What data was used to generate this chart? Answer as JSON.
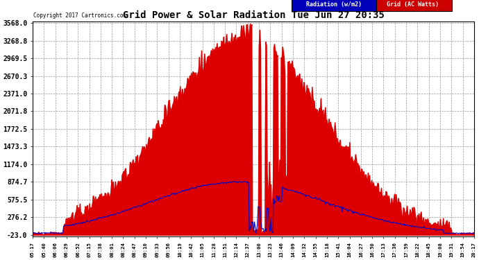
{
  "title": "Grid Power & Solar Radiation Tue Jun 27 20:35",
  "copyright": "Copyright 2017 Cartronics.com",
  "yticks": [
    3568.0,
    3268.8,
    2969.5,
    2670.3,
    2371.0,
    2071.8,
    1772.5,
    1473.3,
    1174.0,
    874.7,
    575.5,
    276.2,
    -23.0
  ],
  "ymin": -23.0,
  "ymax": 3568.0,
  "legend_radiation_label": "Radiation (w/m2)",
  "legend_grid_label": "Grid (AC Watts)",
  "legend_radiation_bg": "#0000bb",
  "legend_radiation_fg": "#ffffff",
  "legend_grid_bg": "#cc0000",
  "legend_grid_fg": "#ffffff",
  "background_color": "#ffffff",
  "plot_bg": "#ffffff",
  "grid_color": "#999999",
  "fill_color": "#dd0000",
  "line_color_radiation": "#0000cc",
  "line_color_grid": "#dd0000",
  "xtick_labels": [
    "05:17",
    "05:40",
    "06:06",
    "06:29",
    "06:52",
    "07:15",
    "07:38",
    "08:01",
    "08:24",
    "08:47",
    "09:10",
    "09:33",
    "09:56",
    "10:19",
    "10:42",
    "11:05",
    "11:28",
    "11:51",
    "12:14",
    "12:37",
    "13:00",
    "13:23",
    "13:46",
    "14:09",
    "14:32",
    "14:55",
    "15:18",
    "15:41",
    "16:04",
    "16:27",
    "16:50",
    "17:13",
    "17:36",
    "17:59",
    "18:22",
    "18:45",
    "19:08",
    "19:31",
    "19:54",
    "20:17"
  ]
}
